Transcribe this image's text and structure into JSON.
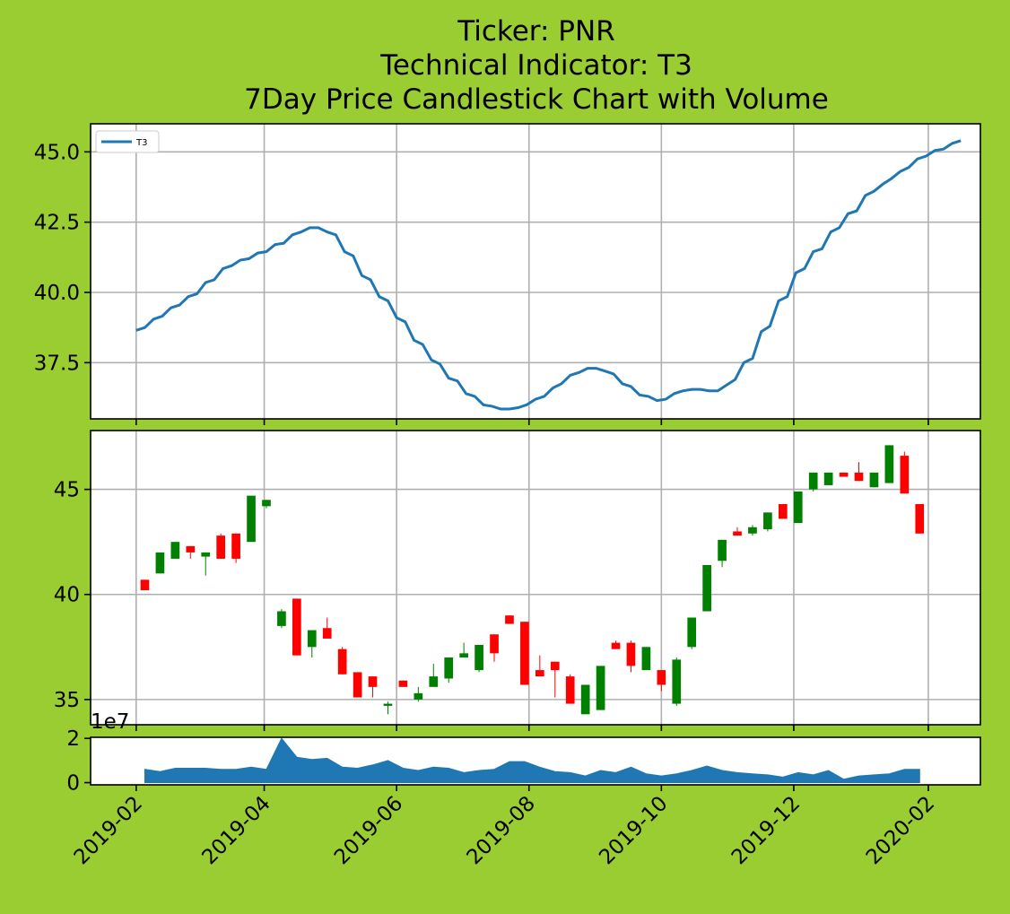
{
  "title_lines": [
    "Ticker: PNR",
    "Technical Indicator: T3",
    "7Day Price Candlestick Chart with Volume"
  ],
  "colors": {
    "background": "#9acd32",
    "line": "#1f77b4",
    "up": "#008000",
    "down": "#ff0000",
    "volume": "#1f77b4",
    "grid": "#b0b0b0"
  },
  "chart_data": [
    {
      "type": "line",
      "panel": "indicator",
      "legend": [
        "T3"
      ],
      "legend_position": "upper-left",
      "grid": true,
      "ylim": [
        35.5,
        46.0
      ],
      "yticks": [
        "37.5",
        "40.0",
        "42.5",
        "45.0"
      ],
      "series": [
        {
          "name": "T3",
          "points": [
            [
              "2019-02-01",
              38.65
            ],
            [
              "2019-02-05",
              38.75
            ],
            [
              "2019-02-09",
              39.05
            ],
            [
              "2019-02-13",
              39.15
            ],
            [
              "2019-02-17",
              39.45
            ],
            [
              "2019-02-21",
              39.55
            ],
            [
              "2019-02-25",
              39.85
            ],
            [
              "2019-03-01",
              39.95
            ],
            [
              "2019-03-05",
              40.35
            ],
            [
              "2019-03-09",
              40.45
            ],
            [
              "2019-03-13",
              40.85
            ],
            [
              "2019-03-17",
              40.95
            ],
            [
              "2019-03-21",
              41.15
            ],
            [
              "2019-03-25",
              41.2
            ],
            [
              "2019-03-29",
              41.4
            ],
            [
              "2019-04-02",
              41.45
            ],
            [
              "2019-04-06",
              41.7
            ],
            [
              "2019-04-10",
              41.75
            ],
            [
              "2019-04-14",
              42.05
            ],
            [
              "2019-04-18",
              42.15
            ],
            [
              "2019-04-22",
              42.3
            ],
            [
              "2019-04-26",
              42.3
            ],
            [
              "2019-04-30",
              42.15
            ],
            [
              "2019-05-04",
              42.05
            ],
            [
              "2019-05-08",
              41.45
            ],
            [
              "2019-05-12",
              41.3
            ],
            [
              "2019-05-16",
              40.6
            ],
            [
              "2019-05-20",
              40.45
            ],
            [
              "2019-05-24",
              39.85
            ],
            [
              "2019-05-28",
              39.7
            ],
            [
              "2019-06-01",
              39.1
            ],
            [
              "2019-06-05",
              38.95
            ],
            [
              "2019-06-09",
              38.3
            ],
            [
              "2019-06-13",
              38.15
            ],
            [
              "2019-06-17",
              37.6
            ],
            [
              "2019-06-21",
              37.45
            ],
            [
              "2019-06-25",
              36.95
            ],
            [
              "2019-06-29",
              36.85
            ],
            [
              "2019-07-03",
              36.4
            ],
            [
              "2019-07-07",
              36.3
            ],
            [
              "2019-07-11",
              36.0
            ],
            [
              "2019-07-15",
              35.95
            ],
            [
              "2019-07-19",
              35.85
            ],
            [
              "2019-07-23",
              35.85
            ],
            [
              "2019-07-27",
              35.9
            ],
            [
              "2019-07-31",
              36.0
            ],
            [
              "2019-08-04",
              36.2
            ],
            [
              "2019-08-08",
              36.3
            ],
            [
              "2019-08-12",
              36.6
            ],
            [
              "2019-08-16",
              36.75
            ],
            [
              "2019-08-20",
              37.05
            ],
            [
              "2019-08-24",
              37.15
            ],
            [
              "2019-08-28",
              37.3
            ],
            [
              "2019-09-01",
              37.3
            ],
            [
              "2019-09-05",
              37.2
            ],
            [
              "2019-09-09",
              37.1
            ],
            [
              "2019-09-13",
              36.75
            ],
            [
              "2019-09-17",
              36.65
            ],
            [
              "2019-09-21",
              36.35
            ],
            [
              "2019-09-25",
              36.3
            ],
            [
              "2019-09-29",
              36.15
            ],
            [
              "2019-10-03",
              36.2
            ],
            [
              "2019-10-07",
              36.4
            ],
            [
              "2019-10-11",
              36.5
            ],
            [
              "2019-10-15",
              36.55
            ],
            [
              "2019-10-19",
              36.55
            ],
            [
              "2019-10-23",
              36.5
            ],
            [
              "2019-10-27",
              36.5
            ],
            [
              "2019-10-31",
              36.7
            ],
            [
              "2019-11-04",
              36.9
            ],
            [
              "2019-11-08",
              37.5
            ],
            [
              "2019-11-12",
              37.65
            ],
            [
              "2019-11-16",
              38.6
            ],
            [
              "2019-11-20",
              38.8
            ],
            [
              "2019-11-24",
              39.7
            ],
            [
              "2019-11-28",
              39.85
            ],
            [
              "2019-12-02",
              40.7
            ],
            [
              "2019-12-06",
              40.85
            ],
            [
              "2019-12-10",
              41.45
            ],
            [
              "2019-12-14",
              41.55
            ],
            [
              "2019-12-18",
              42.15
            ],
            [
              "2019-12-22",
              42.3
            ],
            [
              "2019-12-26",
              42.8
            ],
            [
              "2019-12-30",
              42.9
            ],
            [
              "2020-01-03",
              43.45
            ],
            [
              "2020-01-07",
              43.6
            ],
            [
              "2020-01-11",
              43.85
            ],
            [
              "2020-01-15",
              44.05
            ],
            [
              "2020-01-19",
              44.3
            ],
            [
              "2020-01-23",
              44.45
            ],
            [
              "2020-01-27",
              44.75
            ],
            [
              "2020-01-31",
              44.85
            ],
            [
              "2020-02-04",
              45.05
            ],
            [
              "2020-02-08",
              45.1
            ],
            [
              "2020-02-12",
              45.3
            ],
            [
              "2020-02-16",
              45.4
            ]
          ]
        }
      ]
    },
    {
      "type": "candlestick",
      "panel": "price",
      "grid": true,
      "ylim": [
        33.8,
        47.8
      ],
      "yticks": [
        "35",
        "40",
        "45"
      ],
      "columns": [
        "date",
        "open",
        "high",
        "low",
        "close"
      ],
      "candles": [
        [
          "2019-02-05",
          40.7,
          40.7,
          40.2,
          40.2
        ],
        [
          "2019-02-12",
          41.0,
          42.0,
          41.0,
          42.0
        ],
        [
          "2019-02-19",
          41.7,
          42.5,
          41.7,
          42.5
        ],
        [
          "2019-02-26",
          42.3,
          42.3,
          41.7,
          42.0
        ],
        [
          "2019-03-05",
          41.8,
          42.0,
          40.9,
          42.0
        ],
        [
          "2019-03-12",
          42.8,
          42.9,
          41.7,
          41.7
        ],
        [
          "2019-03-19",
          42.9,
          42.9,
          41.5,
          41.7
        ],
        [
          "2019-03-26",
          42.5,
          44.7,
          42.5,
          44.7
        ],
        [
          "2019-04-02",
          44.2,
          44.5,
          44.1,
          44.5
        ],
        [
          "2019-04-09",
          38.5,
          39.3,
          38.4,
          39.2
        ],
        [
          "2019-04-16",
          39.8,
          39.8,
          37.1,
          37.1
        ],
        [
          "2019-04-23",
          37.5,
          38.3,
          37.0,
          38.3
        ],
        [
          "2019-04-30",
          38.4,
          38.9,
          37.9,
          37.9
        ],
        [
          "2019-05-07",
          37.4,
          37.5,
          36.2,
          36.2
        ],
        [
          "2019-05-14",
          36.3,
          36.3,
          35.1,
          35.1
        ],
        [
          "2019-05-21",
          36.1,
          36.1,
          35.1,
          35.6
        ],
        [
          "2019-05-28",
          34.7,
          34.9,
          34.3,
          34.8
        ],
        [
          "2019-06-04",
          35.9,
          35.9,
          35.6,
          35.6
        ],
        [
          "2019-06-11",
          35.0,
          35.6,
          34.9,
          35.3
        ],
        [
          "2019-06-18",
          35.6,
          36.7,
          35.6,
          36.1
        ],
        [
          "2019-06-25",
          36.0,
          37.0,
          35.8,
          37.0
        ],
        [
          "2019-07-02",
          37.0,
          37.7,
          37.0,
          37.2
        ],
        [
          "2019-07-09",
          36.4,
          37.6,
          36.3,
          37.6
        ],
        [
          "2019-07-16",
          38.1,
          38.1,
          36.8,
          37.2
        ],
        [
          "2019-07-23",
          39.0,
          39.0,
          38.6,
          38.6
        ],
        [
          "2019-07-30",
          38.7,
          38.7,
          35.7,
          35.7
        ],
        [
          "2019-08-06",
          36.4,
          37.1,
          36.1,
          36.1
        ],
        [
          "2019-08-13",
          36.8,
          36.8,
          35.1,
          36.4
        ],
        [
          "2019-08-20",
          36.1,
          36.2,
          34.8,
          34.8
        ],
        [
          "2019-08-27",
          34.3,
          35.7,
          34.3,
          35.7
        ],
        [
          "2019-09-03",
          34.5,
          36.6,
          34.5,
          36.6
        ],
        [
          "2019-09-10",
          37.7,
          37.8,
          37.4,
          37.4
        ],
        [
          "2019-09-17",
          37.7,
          37.8,
          36.3,
          36.6
        ],
        [
          "2019-09-24",
          36.4,
          37.5,
          36.4,
          37.5
        ],
        [
          "2019-10-01",
          36.4,
          36.4,
          35.4,
          35.7
        ],
        [
          "2019-10-08",
          34.8,
          37.0,
          34.7,
          36.9
        ],
        [
          "2019-10-15",
          37.5,
          38.9,
          37.4,
          38.9
        ],
        [
          "2019-10-22",
          39.2,
          41.4,
          39.2,
          41.4
        ],
        [
          "2019-10-29",
          41.6,
          42.6,
          41.3,
          42.6
        ],
        [
          "2019-11-05",
          43.0,
          43.2,
          42.8,
          42.8
        ],
        [
          "2019-11-12",
          42.9,
          43.3,
          42.8,
          43.2
        ],
        [
          "2019-11-19",
          43.1,
          43.9,
          43.0,
          43.9
        ],
        [
          "2019-11-26",
          44.3,
          44.3,
          43.6,
          43.6
        ],
        [
          "2019-12-03",
          43.4,
          44.9,
          43.4,
          44.9
        ],
        [
          "2019-12-10",
          45.0,
          45.8,
          44.9,
          45.8
        ],
        [
          "2019-12-17",
          45.2,
          45.8,
          45.2,
          45.8
        ],
        [
          "2019-12-24",
          45.8,
          45.8,
          45.6,
          45.6
        ],
        [
          "2019-12-31",
          45.8,
          46.3,
          45.4,
          45.4
        ],
        [
          "2020-01-07",
          45.1,
          45.8,
          45.1,
          45.8
        ],
        [
          "2020-01-14",
          45.3,
          47.1,
          45.3,
          47.1
        ],
        [
          "2020-01-21",
          46.6,
          46.8,
          44.8,
          44.8
        ],
        [
          "2020-01-28",
          44.3,
          44.3,
          42.9,
          42.9
        ]
      ]
    },
    {
      "type": "area",
      "panel": "volume",
      "grid": false,
      "exponent_label": "1e7",
      "ylim": [
        -0.1,
        2.05
      ],
      "yticks": [
        "0",
        "2"
      ],
      "series": [
        {
          "points": [
            [
              "2019-02-05",
              0.6
            ],
            [
              "2019-02-12",
              0.5
            ],
            [
              "2019-02-19",
              0.65
            ],
            [
              "2019-02-26",
              0.65
            ],
            [
              "2019-03-05",
              0.65
            ],
            [
              "2019-03-12",
              0.6
            ],
            [
              "2019-03-19",
              0.6
            ],
            [
              "2019-03-26",
              0.7
            ],
            [
              "2019-04-02",
              0.6
            ],
            [
              "2019-04-09",
              2.0
            ],
            [
              "2019-04-16",
              1.15
            ],
            [
              "2019-04-23",
              1.05
            ],
            [
              "2019-04-30",
              1.1
            ],
            [
              "2019-05-07",
              0.7
            ],
            [
              "2019-05-14",
              0.65
            ],
            [
              "2019-05-21",
              0.8
            ],
            [
              "2019-05-28",
              1.0
            ],
            [
              "2019-06-04",
              0.65
            ],
            [
              "2019-06-11",
              0.55
            ],
            [
              "2019-06-18",
              0.7
            ],
            [
              "2019-06-25",
              0.65
            ],
            [
              "2019-07-02",
              0.45
            ],
            [
              "2019-07-09",
              0.55
            ],
            [
              "2019-07-16",
              0.6
            ],
            [
              "2019-07-23",
              0.95
            ],
            [
              "2019-07-30",
              0.95
            ],
            [
              "2019-08-06",
              0.7
            ],
            [
              "2019-08-13",
              0.5
            ],
            [
              "2019-08-20",
              0.45
            ],
            [
              "2019-08-27",
              0.3
            ],
            [
              "2019-09-03",
              0.55
            ],
            [
              "2019-09-10",
              0.45
            ],
            [
              "2019-09-17",
              0.7
            ],
            [
              "2019-09-24",
              0.4
            ],
            [
              "2019-10-01",
              0.3
            ],
            [
              "2019-10-08",
              0.4
            ],
            [
              "2019-10-15",
              0.55
            ],
            [
              "2019-10-22",
              0.75
            ],
            [
              "2019-10-29",
              0.55
            ],
            [
              "2019-11-05",
              0.45
            ],
            [
              "2019-11-12",
              0.4
            ],
            [
              "2019-11-19",
              0.35
            ],
            [
              "2019-11-26",
              0.25
            ],
            [
              "2019-12-03",
              0.45
            ],
            [
              "2019-12-10",
              0.35
            ],
            [
              "2019-12-17",
              0.55
            ],
            [
              "2019-12-24",
              0.15
            ],
            [
              "2019-12-31",
              0.3
            ],
            [
              "2020-01-07",
              0.35
            ],
            [
              "2020-01-14",
              0.4
            ],
            [
              "2020-01-21",
              0.6
            ],
            [
              "2020-01-28",
              0.6
            ]
          ]
        }
      ]
    }
  ],
  "x_axis": {
    "type": "date",
    "range": [
      "2019-01-11",
      "2020-02-25"
    ],
    "ticks": [
      "2019-02",
      "2019-04",
      "2019-06",
      "2019-08",
      "2019-10",
      "2019-12",
      "2020-02"
    ],
    "tick_dates": [
      "2019-02-01",
      "2019-04-01",
      "2019-06-01",
      "2019-08-01",
      "2019-10-01",
      "2019-12-01",
      "2020-02-01"
    ],
    "tick_rotation": 45
  }
}
